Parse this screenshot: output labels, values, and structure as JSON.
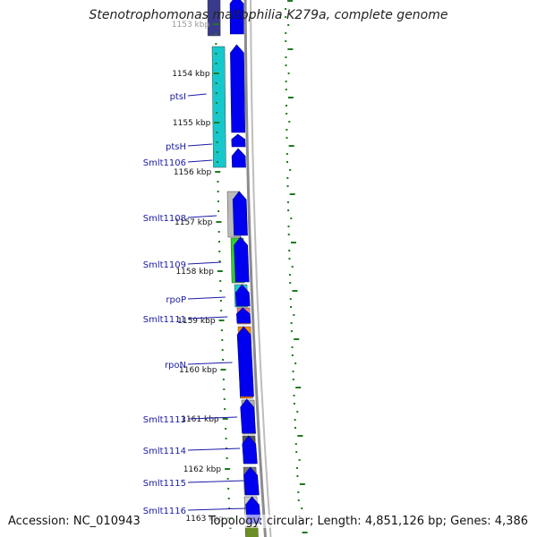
{
  "title": "Stenotrophomonas maltophilia K279a, complete genome",
  "footer": {
    "accession_label": "Accession:",
    "accession": "NC_010943",
    "topology_label": "Topology:",
    "topology": "circular",
    "length_label": "Length:",
    "length": "4,851,126 bp",
    "genes_label": "Genes:",
    "genes": "4,386"
  },
  "colors": {
    "gene_arrow": "#0000ee",
    "backbone": "#8c8c8c",
    "tick_green": "#1f7a1f",
    "label_blue": "#1a1aa8"
  },
  "tick_labels": [
    "1153 kbp",
    "1154 kbp",
    "1155 kbp",
    "1156 kbp",
    "1157 kbp",
    "1158 kbp",
    "1159 kbp",
    "1160 kbp",
    "1161 kbp",
    "1162 kbp",
    "1163 kbp"
  ],
  "gene_labels": [
    "ptsI",
    "ptsH",
    "Smlt1106",
    "Smlt1108",
    "Smlt1109",
    "rpoP",
    "Smlt1111",
    "rpoN",
    "Smlt1113",
    "Smlt1114",
    "Smlt1115",
    "Smlt1116"
  ],
  "feature_colors": [
    "#3a3a8c",
    "#16c8cc",
    "#bbbbbb",
    "#33cc33",
    "#22cccc",
    "#f08080",
    "#ff8c00",
    "#b0b0b0",
    "#555555",
    "#777777",
    "#cccccc",
    "#6b8e23"
  ]
}
